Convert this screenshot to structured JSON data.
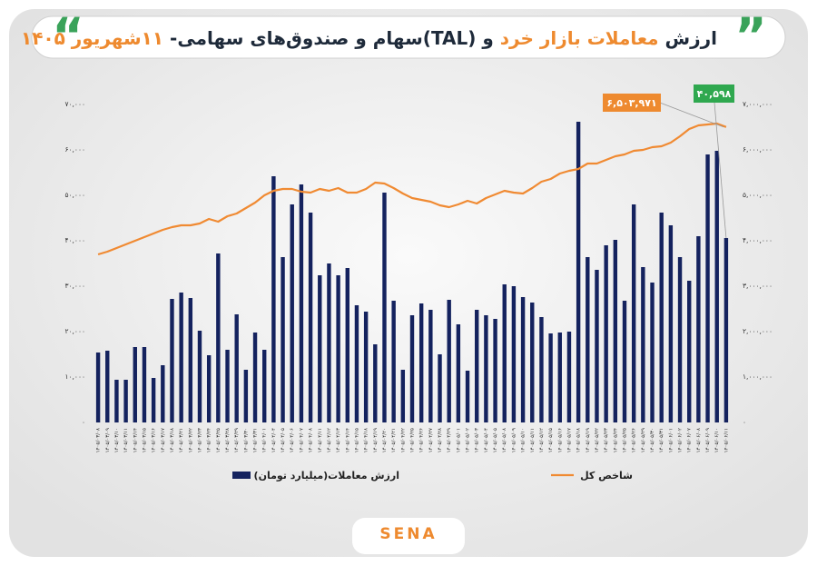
{
  "chart_data": {
    "type": "bar",
    "title": [
      {
        "text": "ارزش ",
        "color": "#1e2a3a"
      },
      {
        "text": "معاملات بازار خرد",
        "color": "#ee8a2f"
      },
      {
        "text": " و (TAL)سهام و صندوق‌های سهامی- ",
        "color": "#1e2a3a"
      },
      {
        "text": "۱۱شهریور ۱۴۰۵",
        "color": "#ee8a2f"
      }
    ],
    "categories": [
      "۱۴۰۵/۰۳/۰۸",
      "۱۴۰۵/۰۳/۰۹",
      "۱۴۰۵/۰۳/۱۰",
      "۱۴۰۵/۰۳/۱۱",
      "۱۴۰۵/۰۳/۱۴",
      "۱۴۰۵/۰۳/۱۵",
      "۱۴۰۵/۰۳/۱۶",
      "۱۴۰۵/۰۳/۱۷",
      "۱۴۰۵/۰۳/۱۸",
      "۱۴۰۵/۰۳/۲۱",
      "۱۴۰۵/۰۳/۲۲",
      "۱۴۰۵/۰۳/۲۳",
      "۱۴۰۵/۰۳/۲۴",
      "۱۴۰۵/۰۳/۲۵",
      "۱۴۰۵/۰۳/۲۸",
      "۱۴۰۵/۰۳/۲۹",
      "۱۴۰۵/۰۳/۳۰",
      "۱۴۰۵/۰۳/۳۱",
      "۱۴۰۵/۰۴/۰۱",
      "۱۴۰۵/۰۴/۰۴",
      "۱۴۰۵/۰۴/۰۵",
      "۱۴۰۵/۰۴/۰۶",
      "۱۴۰۵/۰۴/۰۷",
      "۱۴۰۵/۰۴/۰۸",
      "۱۴۰۵/۰۴/۱۱",
      "۱۴۰۵/۰۴/۱۲",
      "۱۴۰۵/۰۴/۱۳",
      "۱۴۰۵/۰۴/۱۴",
      "۱۴۰۵/۰۴/۱۵",
      "۱۴۰۵/۰۴/۱۸",
      "۱۴۰۵/۰۴/۱۹",
      "۱۴۰۵/۰۴/۲۰",
      "۱۴۰۵/۰۴/۲۱",
      "۱۴۰۵/۰۴/۲۲",
      "۱۴۰۵/۰۴/۲۵",
      "۱۴۰۵/۰۴/۲۶",
      "۱۴۰۵/۰۴/۲۷",
      "۱۴۰۵/۰۴/۲۸",
      "۱۴۰۵/۰۴/۲۹",
      "۱۴۰۵/۰۵/۰۱",
      "۱۴۰۵/۰۵/۰۲",
      "۱۴۰۵/۰۵/۰۳",
      "۱۴۰۵/۰۵/۰۴",
      "۱۴۰۵/۰۵/۰۵",
      "۱۴۰۵/۰۵/۰۸",
      "۱۴۰۵/۰۵/۰۹",
      "۱۴۰۵/۰۵/۱۰",
      "۱۴۰۵/۰۵/۱۱",
      "۱۴۰۵/۰۵/۱۲",
      "۱۴۰۵/۰۵/۱۵",
      "۱۴۰۵/۰۵/۱۶",
      "۱۴۰۵/۰۵/۱۷",
      "۱۴۰۵/۰۵/۱۸",
      "۱۴۰۵/۰۵/۱۹",
      "۱۴۰۵/۰۵/۲۲",
      "۱۴۰۵/۰۵/۲۳",
      "۱۴۰۵/۰۵/۲۴",
      "۱۴۰۵/۰۵/۲۵",
      "۱۴۰۵/۰۵/۲۶",
      "۱۴۰۵/۰۵/۲۹",
      "۱۴۰۵/۰۵/۳۰",
      "۱۴۰۵/۰۵/۳۱",
      "۱۴۰۵/۰۶/۰۱",
      "۱۴۰۵/۰۶/۰۲",
      "۱۴۰۵/۰۶/۰۷",
      "۱۴۰۵/۰۶/۰۸",
      "۱۴۰۵/۰۶/۰۹",
      "۱۴۰۵/۰۶/۱۰",
      "۱۴۰۵/۰۶/۱۱"
    ],
    "series": [
      {
        "name": "ارزش معاملات(میلیارد تومان)",
        "type": "bar",
        "color": "#14225e",
        "values": [
          15400,
          15800,
          9400,
          9400,
          16600,
          16600,
          9800,
          12600,
          27200,
          28600,
          27400,
          20200,
          14800,
          37200,
          16000,
          23800,
          11600,
          19800,
          16000,
          54200,
          36400,
          48000,
          52400,
          46200,
          32400,
          35000,
          32400,
          34000,
          25800,
          24400,
          17200,
          50600,
          26800,
          11600,
          23600,
          26200,
          24800,
          15000,
          27000,
          21600,
          11400,
          24800,
          23600,
          22800,
          30400,
          30000,
          27600,
          26400,
          23200,
          19600,
          19800,
          20000,
          66200,
          36400,
          33600,
          39000,
          40200,
          26800,
          48000,
          34200,
          30800,
          46200,
          43400,
          36400,
          31200,
          41000,
          59000,
          59800,
          40598
        ]
      },
      {
        "name": "شاخص کل",
        "type": "line",
        "axis": "y2",
        "color": "#f08a32",
        "values": [
          3700000,
          3760000,
          3840000,
          3920000,
          4000000,
          4080000,
          4160000,
          4240000,
          4300000,
          4340000,
          4340000,
          4380000,
          4480000,
          4420000,
          4540000,
          4600000,
          4720000,
          4840000,
          5000000,
          5100000,
          5140000,
          5140000,
          5080000,
          5060000,
          5140000,
          5100000,
          5160000,
          5060000,
          5060000,
          5140000,
          5280000,
          5260000,
          5160000,
          5040000,
          4940000,
          4900000,
          4860000,
          4780000,
          4740000,
          4800000,
          4880000,
          4820000,
          4940000,
          5020000,
          5100000,
          5060000,
          5040000,
          5160000,
          5300000,
          5360000,
          5480000,
          5540000,
          5580000,
          5700000,
          5700000,
          5780000,
          5860000,
          5900000,
          5980000,
          6000000,
          6060000,
          6080000,
          6160000,
          6300000,
          6460000,
          6540000,
          6560000,
          6580000,
          6503971
        ]
      }
    ],
    "annotations": [
      "۶,۵۰۳,۹۷۱",
      "۴۰,۵۹۸"
    ],
    "ylim": [
      0,
      70000
    ],
    "yticks": [
      {
        "value": 0,
        "label": "۰"
      },
      {
        "value": 10000,
        "label": "۱۰,۰۰۰"
      },
      {
        "value": 20000,
        "label": "۲۰,۰۰۰"
      },
      {
        "value": 30000,
        "label": "۳۰,۰۰۰"
      },
      {
        "value": 40000,
        "label": "۴۰,۰۰۰"
      },
      {
        "value": 50000,
        "label": "۵۰,۰۰۰"
      },
      {
        "value": 60000,
        "label": "۶۰,۰۰۰"
      },
      {
        "value": 70000,
        "label": "۷۰,۰۰۰"
      }
    ],
    "y2lim": [
      0,
      7000000
    ],
    "y2ticks": [
      {
        "value": 0,
        "label": "۰"
      },
      {
        "value": 1000000,
        "label": "۱,۰۰۰,۰۰۰"
      },
      {
        "value": 2000000,
        "label": "۲,۰۰۰,۰۰۰"
      },
      {
        "value": 3000000,
        "label": "۳,۰۰۰,۰۰۰"
      },
      {
        "value": 4000000,
        "label": "۴,۰۰۰,۰۰۰"
      },
      {
        "value": 5000000,
        "label": "۵,۰۰۰,۰۰۰"
      },
      {
        "value": 6000000,
        "label": "۶,۰۰۰,۰۰۰"
      },
      {
        "value": 7000000,
        "label": "۷,۰۰۰,۰۰۰"
      }
    ],
    "grid": false,
    "legend": "bottom",
    "logo": "SENA"
  }
}
